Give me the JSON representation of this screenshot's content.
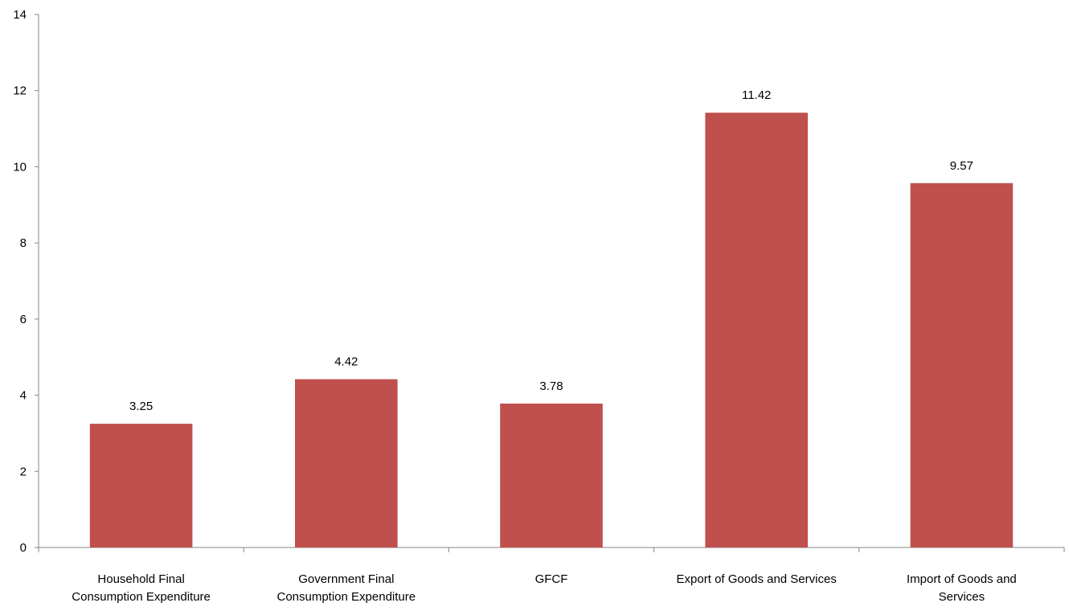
{
  "chart_data": {
    "type": "bar",
    "categories": [
      [
        "Household Final",
        "Consumption Expenditure"
      ],
      [
        "Government Final",
        "Consumption Expenditure"
      ],
      [
        "GFCF"
      ],
      [
        "Export of Goods and Services"
      ],
      [
        "Import of Goods and",
        "Services"
      ]
    ],
    "values": [
      3.25,
      4.42,
      3.78,
      11.42,
      9.57
    ],
    "data_labels": [
      "3.25",
      "4.42",
      "3.78",
      "11.42",
      "9.57"
    ],
    "y_ticks": [
      "0",
      "2",
      "4",
      "6",
      "8",
      "10",
      "12",
      "14"
    ],
    "ylim": [
      0,
      14
    ],
    "title": "",
    "xlabel": "",
    "ylabel": "",
    "grid": false,
    "legend": "none",
    "bar_color": "#c0504d",
    "axis_color": "#868686"
  }
}
